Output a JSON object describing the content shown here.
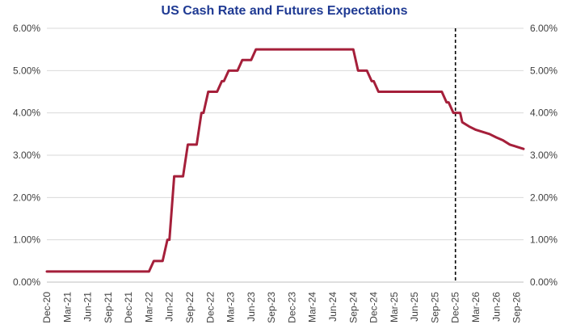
{
  "chart_data": {
    "type": "line",
    "title": "US Cash Rate and Futures Expectations",
    "xlabel": "",
    "ylabel": "",
    "ylim": [
      0,
      6
    ],
    "y_ticks": [
      "0.00%",
      "1.00%",
      "2.00%",
      "3.00%",
      "4.00%",
      "5.00%",
      "6.00%"
    ],
    "y2_ticks": [
      "0.00%",
      "1.00%",
      "2.00%",
      "3.00%",
      "4.00%",
      "5.00%",
      "6.00%"
    ],
    "x_ticks": [
      "Dec-20",
      "Mar-21",
      "Jun-21",
      "Sep-21",
      "Dec-21",
      "Mar-22",
      "Jun-22",
      "Sep-22",
      "Dec-22",
      "Mar-23",
      "Jun-23",
      "Sep-23",
      "Dec-23",
      "Mar-24",
      "Jun-24",
      "Sep-24",
      "Dec-24",
      "Mar-25",
      "Jun-25",
      "Sep-25",
      "Dec-25",
      "Mar-26",
      "Jun-26",
      "Sep-26"
    ],
    "forecast_divider_at": "Dec-25",
    "series": [
      {
        "name": "US Cash Rate",
        "color": "#a51f3a",
        "x": [
          0,
          15,
          15.7,
          16,
          16.7,
          17,
          17.7,
          18,
          18.7,
          19,
          19.7,
          20,
          20.7,
          21,
          21.7,
          22,
          22.7,
          23,
          23.7,
          24,
          24.7,
          25,
          25.7,
          26,
          26.7,
          27,
          27.7,
          28,
          28.7,
          29,
          29.7,
          30,
          30.7,
          31,
          31.7,
          32,
          32.7,
          33,
          33.7,
          34,
          34.7,
          35,
          35.7,
          36,
          36.7,
          37,
          37.7,
          38,
          38.7,
          39,
          39.7,
          40,
          40.7,
          41,
          41.7,
          42,
          42.7,
          43,
          43.7,
          44,
          44.7,
          45,
          45.7,
          46,
          46.7,
          47,
          47.7,
          48,
          48.7,
          49,
          49.7,
          50,
          50.7,
          51,
          51.7,
          52,
          52.7,
          53,
          53.7,
          54,
          54.7,
          55,
          55.7,
          56,
          56.7,
          57,
          57.7,
          58,
          58.7,
          59,
          59.7,
          60,
          60.7,
          61,
          62,
          63,
          64,
          65,
          66,
          67,
          68,
          69,
          70
        ],
        "values": [
          0.25,
          0.25,
          0.5,
          0.5,
          0.5,
          0.5,
          1.0,
          1.0,
          2.5,
          2.5,
          2.5,
          2.5,
          3.25,
          3.25,
          3.25,
          3.25,
          4.0,
          4.0,
          4.5,
          4.5,
          4.5,
          4.5,
          4.75,
          4.75,
          5.0,
          5.0,
          5.0,
          5.0,
          5.25,
          5.25,
          5.25,
          5.25,
          5.5,
          5.5,
          5.5,
          5.5,
          5.5,
          5.5,
          5.5,
          5.5,
          5.5,
          5.5,
          5.5,
          5.5,
          5.5,
          5.5,
          5.5,
          5.5,
          5.5,
          5.5,
          5.5,
          5.5,
          5.5,
          5.5,
          5.5,
          5.5,
          5.5,
          5.5,
          5.5,
          5.5,
          5.5,
          5.5,
          5.0,
          5.0,
          5.0,
          5.0,
          4.75,
          4.75,
          4.5,
          4.5,
          4.5,
          4.5,
          4.5,
          4.5,
          4.5,
          4.5,
          4.5,
          4.5,
          4.5,
          4.5,
          4.5,
          4.5,
          4.5,
          4.5,
          4.5,
          4.5,
          4.5,
          4.5,
          4.25,
          4.25,
          4.0,
          4.0,
          4.0,
          3.78,
          3.68,
          3.6,
          3.55,
          3.5,
          3.42,
          3.35,
          3.25,
          3.2,
          3.15
        ]
      }
    ]
  }
}
